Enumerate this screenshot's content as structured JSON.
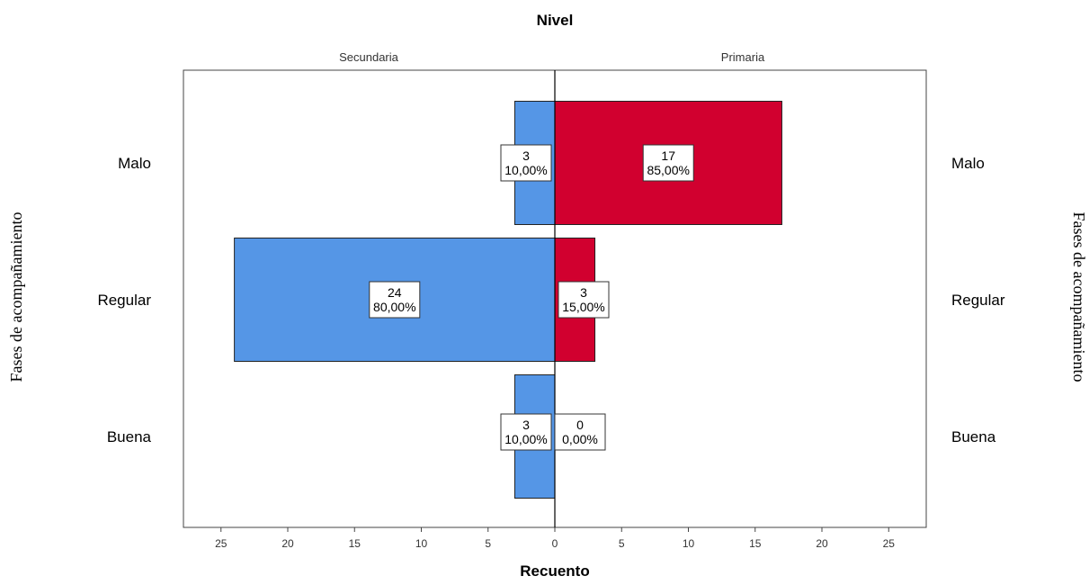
{
  "chart_data": {
    "type": "bar",
    "orientation": "horizontal",
    "layout": "population-pyramid",
    "title": "Nivel",
    "xlabel": "Recuento",
    "ylabel": "Fases de acompañamiento",
    "categories": [
      "Malo",
      "Regular",
      "Buena"
    ],
    "xlim": [
      0,
      28
    ],
    "x_ticks": [
      25,
      20,
      15,
      10,
      5,
      0,
      5,
      10,
      15,
      20,
      25
    ],
    "grid": false,
    "series": [
      {
        "name": "Secundaria",
        "side": "left",
        "color": "#5596e6",
        "values": [
          3,
          24,
          3
        ],
        "labels": [
          "10,00%",
          "80,00%",
          "10,00%"
        ]
      },
      {
        "name": "Primaria",
        "side": "right",
        "color": "#d1002f",
        "values": [
          17,
          3,
          0
        ],
        "labels": [
          "85,00%",
          "15,00%",
          "0,00%"
        ]
      }
    ]
  }
}
